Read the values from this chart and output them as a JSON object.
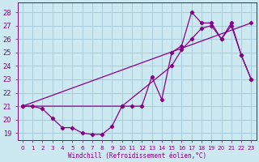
{
  "xlabel": "Windchill (Refroidissement éolien,°C)",
  "bg_color": "#cce8f0",
  "grid_color": "#a8ccd8",
  "line_color": "#880088",
  "xlim": [
    -0.5,
    23.5
  ],
  "ylim": [
    18.5,
    28.7
  ],
  "xticks": [
    0,
    1,
    2,
    3,
    4,
    5,
    6,
    7,
    8,
    9,
    10,
    11,
    12,
    13,
    14,
    15,
    16,
    17,
    18,
    19,
    20,
    21,
    22,
    23
  ],
  "yticks": [
    19,
    20,
    21,
    22,
    23,
    24,
    25,
    26,
    27,
    28
  ],
  "line1_x": [
    0,
    1,
    2,
    3,
    4,
    5,
    6,
    7,
    8,
    9,
    10,
    11,
    12,
    13,
    14,
    15,
    16,
    17,
    18,
    19,
    20,
    21,
    22,
    23
  ],
  "line1_y": [
    21.0,
    21.0,
    20.8,
    20.1,
    19.4,
    19.4,
    19.0,
    18.9,
    18.9,
    19.5,
    21.0,
    21.0,
    21.0,
    23.2,
    21.5,
    25.0,
    25.5,
    28.0,
    27.2,
    27.2,
    26.0,
    27.2,
    24.8,
    23.0
  ],
  "line2_x": [
    0,
    10,
    15,
    16,
    17,
    18,
    19,
    20,
    21,
    22,
    23
  ],
  "line2_y": [
    21.0,
    21.0,
    24.0,
    25.2,
    26.0,
    26.8,
    27.0,
    26.0,
    27.0,
    24.8,
    23.0
  ],
  "line3_x": [
    0,
    23
  ],
  "line3_y": [
    21.0,
    27.2
  ]
}
